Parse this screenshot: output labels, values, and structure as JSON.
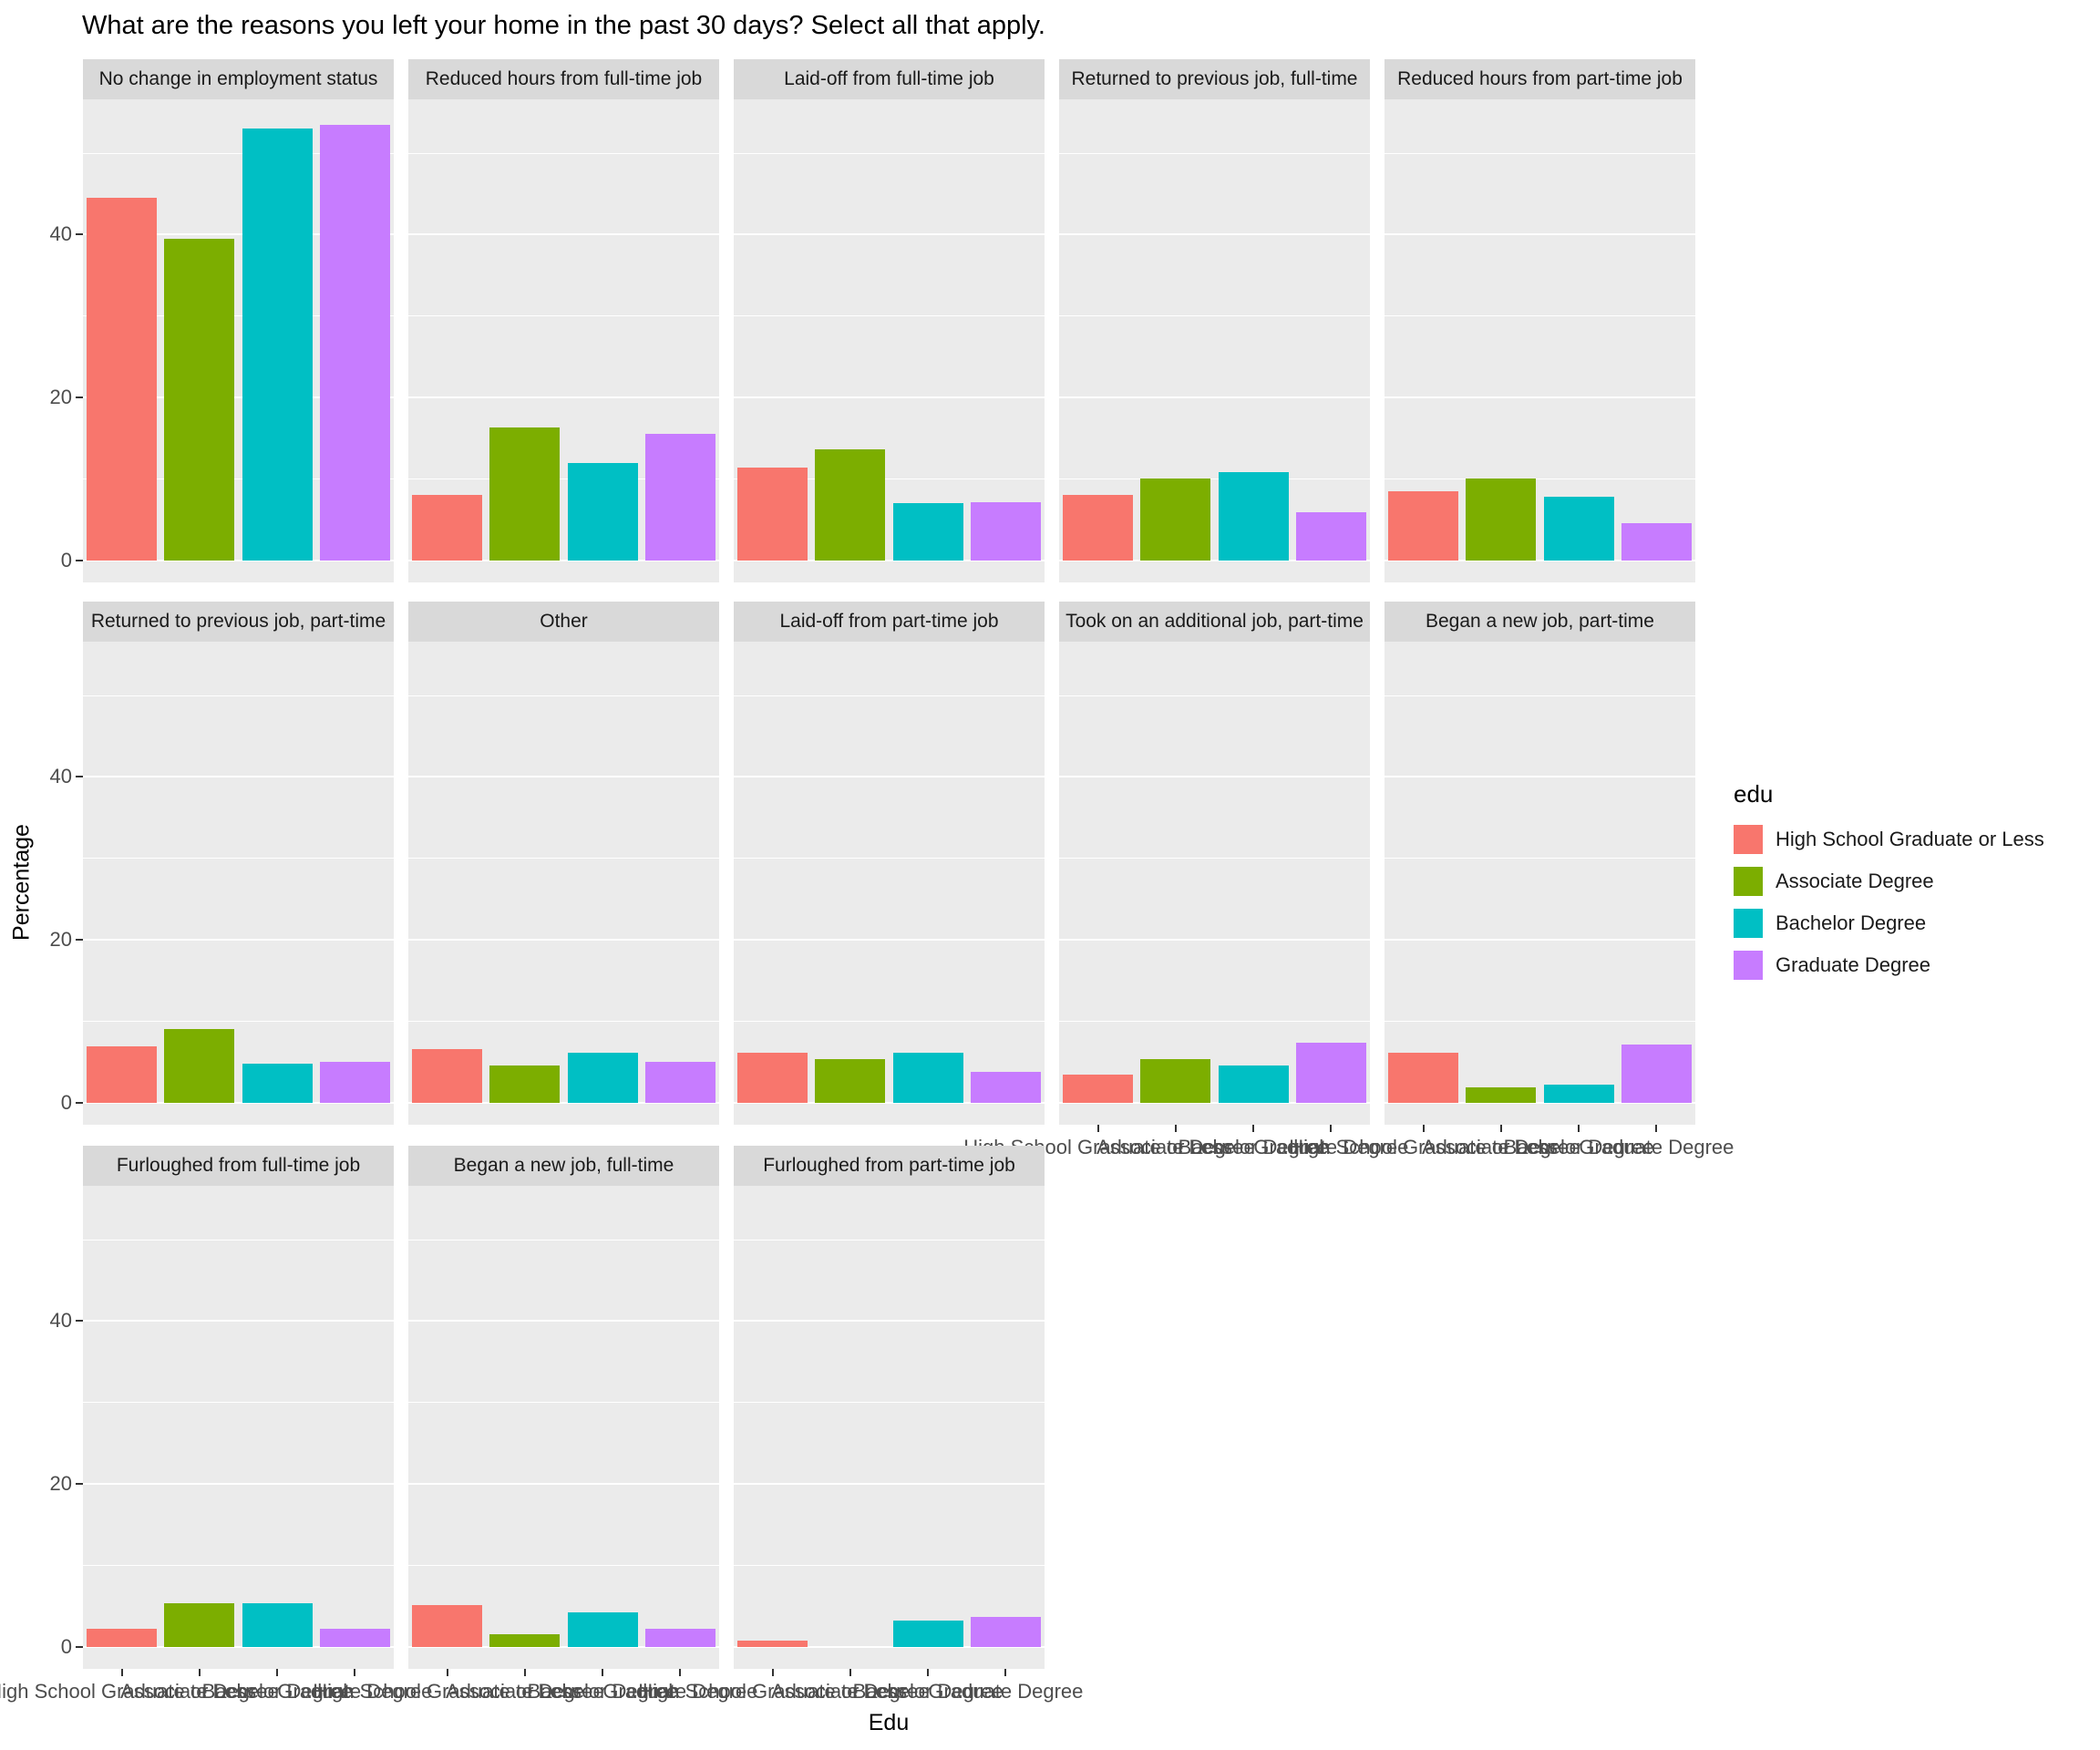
{
  "title": "What are the reasons you left your home in the past 30 days? Select all that apply.",
  "y_axis": {
    "label": "Percentage",
    "major_ticks": [
      0,
      20,
      40
    ],
    "minor_ticks": [
      10,
      30,
      50
    ]
  },
  "x_axis": {
    "label": "Edu"
  },
  "legend": {
    "title": "edu",
    "items": [
      {
        "label": "High School Graduate or Less",
        "color": "#F8766D"
      },
      {
        "label": "Associate Degree",
        "color": "#7CAE00"
      },
      {
        "label": "Bachelor Degree",
        "color": "#00BFC4"
      },
      {
        "label": "Graduate Degree",
        "color": "#C77CFF"
      }
    ]
  },
  "chart_data": {
    "type": "bar",
    "title": "What are the reasons you left your home in the past 30 days? Select all that apply.",
    "xlabel": "Edu",
    "ylabel": "Percentage",
    "ylim": [
      0,
      56.6
    ],
    "grid": true,
    "legend_position": "right",
    "categories": [
      "High School Graduate or Less",
      "Associate Degree",
      "Bachelor Degree",
      "Graduate Degree"
    ],
    "category_colors": [
      "#F8766D",
      "#7CAE00",
      "#00BFC4",
      "#C77CFF"
    ],
    "panel_bg": "#EBEBEB",
    "strip_bg": "#D9D9D9",
    "grid_color": "#FFFFFF",
    "tick_color": "#333333",
    "tick_label_color": "#4D4D4D",
    "facets": [
      {
        "label": "No change in employment status",
        "values": [
          44.5,
          39.5,
          53.0,
          53.5
        ]
      },
      {
        "label": "Reduced hours from full-time job",
        "values": [
          8.0,
          16.3,
          12.0,
          15.5
        ]
      },
      {
        "label": "Laid-off from full-time job",
        "values": [
          11.4,
          13.6,
          7.0,
          7.2
        ]
      },
      {
        "label": "Returned to previous job, full-time",
        "values": [
          8.0,
          10.1,
          10.9,
          5.9
        ]
      },
      {
        "label": "Reduced hours from part-time job",
        "values": [
          8.5,
          10.1,
          7.8,
          4.6
        ]
      },
      {
        "label": "Returned to previous job, part-time",
        "values": [
          6.9,
          9.1,
          4.8,
          5.0
        ]
      },
      {
        "label": "Other",
        "values": [
          6.6,
          4.6,
          6.2,
          5.0
        ]
      },
      {
        "label": "Laid-off from part-time job",
        "values": [
          6.1,
          5.4,
          6.2,
          3.8
        ]
      },
      {
        "label": "Took on an additional job, part-time",
        "values": [
          3.5,
          5.4,
          4.6,
          7.4
        ]
      },
      {
        "label": "Began a new job, part-time",
        "values": [
          6.1,
          1.9,
          2.2,
          7.2
        ]
      },
      {
        "label": "Furloughed from full-time job",
        "values": [
          2.2,
          5.4,
          5.4,
          2.2
        ]
      },
      {
        "label": "Began a new job, full-time",
        "values": [
          5.1,
          1.6,
          4.2,
          2.2
        ]
      },
      {
        "label": "Furloughed from part-time job",
        "values": [
          0.8,
          0.0,
          3.2,
          3.7
        ]
      }
    ]
  }
}
